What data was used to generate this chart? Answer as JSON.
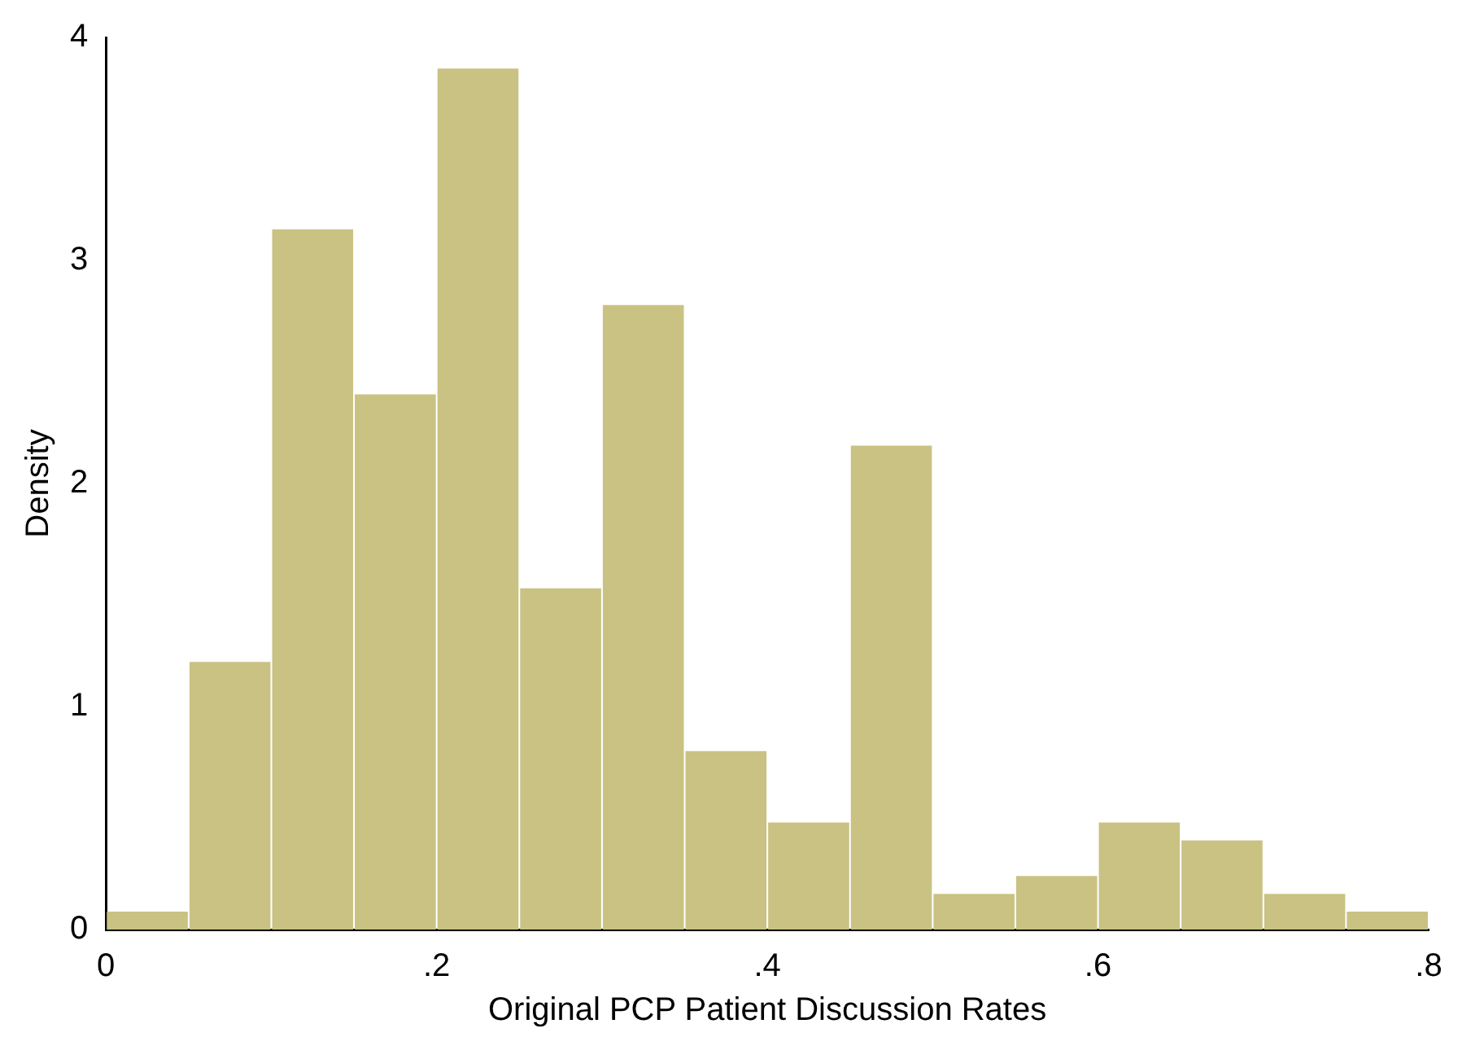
{
  "chart_data": {
    "type": "histogram",
    "xlabel": "Original PCP Patient Discussion Rates",
    "ylabel": "Density",
    "bins": [
      0,
      0.05,
      0.1,
      0.15,
      0.2,
      0.25,
      0.3,
      0.35,
      0.4,
      0.45,
      0.5,
      0.55,
      0.6,
      0.65,
      0.7,
      0.75,
      0.8
    ],
    "values": [
      0.08,
      1.2,
      3.14,
      2.4,
      3.86,
      1.53,
      2.8,
      0.8,
      0.48,
      2.17,
      0.16,
      0.24,
      0.48,
      0.4,
      0.16,
      0.08
    ],
    "color": "#c9c283",
    "xlim": [
      0,
      0.8
    ],
    "xticks": [
      0,
      {
        "value": 0.2,
        "label": ".2"
      },
      {
        "value": 0.4,
        "label": ".4"
      },
      {
        "value": 0.6,
        "label": ".6"
      },
      {
        "value": 0.8,
        "label": ".8"
      }
    ],
    "ylim": [
      0,
      4
    ],
    "yticks": [
      0,
      1,
      2,
      3,
      4
    ],
    "grid": false,
    "legend": false
  }
}
